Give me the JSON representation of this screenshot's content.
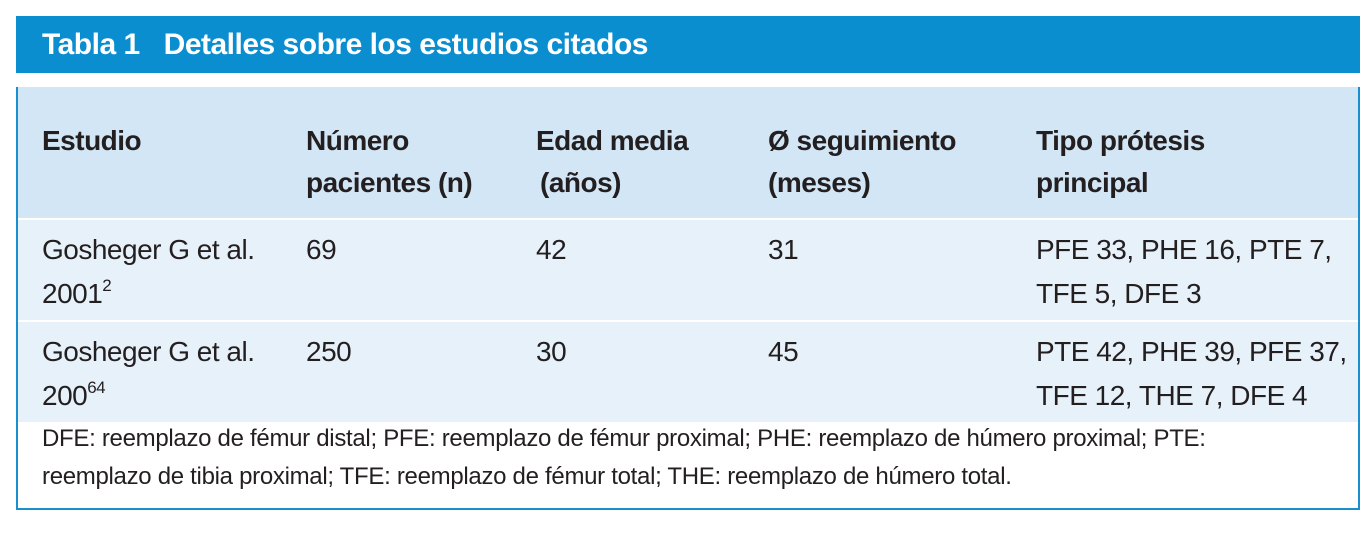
{
  "title": {
    "number": "Tabla 1",
    "text": "Detalles sobre los estudios citados"
  },
  "headers": [
    {
      "line1": "Estudio",
      "line2": ""
    },
    {
      "line1": "Número",
      "line2": "pacientes (n)"
    },
    {
      "line1": "Edad media",
      "line2": "(años)"
    },
    {
      "line1": "Ø seguimiento",
      "line2": "(meses)"
    },
    {
      "line1": "Tipo prótesis",
      "line2": "principal"
    }
  ],
  "rows": [
    {
      "study": "Gosheger G et al.",
      "year": "2001",
      "ref": "2",
      "patients": "69",
      "age": "42",
      "followup": "31",
      "prosthesis_line1": "PFE 33, PHE 16, PTE 7,",
      "prosthesis_line2": "TFE 5, DFE 3"
    },
    {
      "study": "Gosheger G et al.",
      "year": "200",
      "ref": "64",
      "patients": "250",
      "age": "30",
      "followup": "45",
      "prosthesis_line1": "PTE 42, PHE 39, PFE 37,",
      "prosthesis_line2": "TFE 12, THE 7, DFE 4"
    }
  ],
  "footnote": {
    "line1": "DFE: reemplazo de fémur distal; PFE: reemplazo de fémur proximal; PHE: reemplazo de húmero proximal; PTE:",
    "line2": "reemplazo de tibia proximal; TFE: reemplazo de fémur total; THE: reemplazo de húmero total."
  },
  "colors": {
    "title_bar": "#0a8ed0",
    "header_bg": "#d3e6f5",
    "row_bg": "#e7f1fa",
    "border": "#1a8fcf"
  }
}
